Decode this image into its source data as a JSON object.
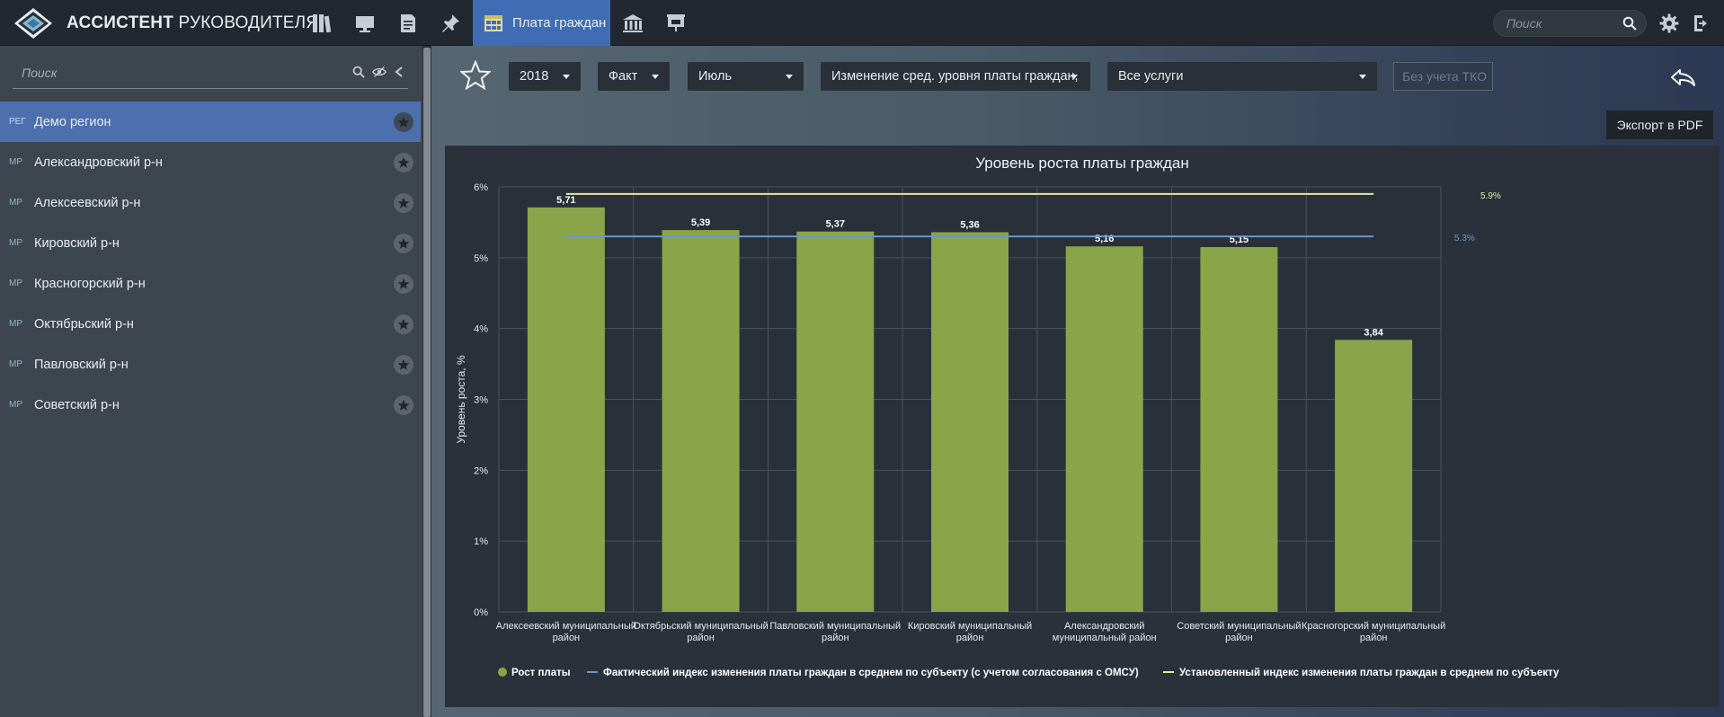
{
  "app": {
    "title_bold": "АССИСТЕНТ",
    "title_light": "РУКОВОДИТЕЛЯ"
  },
  "topbar": {
    "icons": [
      "binders-icon",
      "monitor-icon",
      "checklist-icon",
      "pin-icon"
    ],
    "active_tab": {
      "label": "Плата граждан",
      "icon": "table-grid-icon"
    },
    "icons_after": [
      "bank-icon",
      "presentation-icon"
    ],
    "search_placeholder": "Поиск",
    "right_icons": [
      "gear-icon",
      "logout-icon"
    ]
  },
  "sidebar": {
    "search_placeholder": "Поиск",
    "items": [
      {
        "tag": "РЕГ",
        "label": "Демо регион",
        "active": true
      },
      {
        "tag": "МР",
        "label": "Александровский р-н"
      },
      {
        "tag": "МР",
        "label": "Алексеевский р-н"
      },
      {
        "tag": "МР",
        "label": "Кировский р-н"
      },
      {
        "tag": "МР",
        "label": "Красногорский р-н"
      },
      {
        "tag": "МР",
        "label": "Октябрьский р-н"
      },
      {
        "tag": "МР",
        "label": "Павловский р-н"
      },
      {
        "tag": "МР",
        "label": "Советский р-н"
      }
    ]
  },
  "filters": {
    "year": "2018",
    "mode": "Факт",
    "month": "Июль",
    "indicator": "Изменение сред. уровня платы граждан,",
    "services": "Все услуги",
    "tko_placeholder": "Без учета ТКО"
  },
  "export_label": "Экспорт в PDF",
  "colors": {
    "bar": "#8aa44a",
    "fact_line": "#6f95c8",
    "set_line": "#e7e89a",
    "accent": "#3f6db5"
  },
  "chart_data": {
    "type": "bar",
    "title": "Уровень роста платы граждан",
    "ylabel": "Уровень роста, %",
    "ylim": [
      0,
      6
    ],
    "yticks": [
      "0%",
      "1%",
      "2%",
      "3%",
      "4%",
      "5%",
      "6%"
    ],
    "categories": [
      [
        "Алексеевский муниципальный",
        "район"
      ],
      [
        "Октябрьский муниципальный",
        "район"
      ],
      [
        "Павловский муниципальный",
        "район"
      ],
      [
        "Кировский муниципальный",
        "район"
      ],
      [
        "Александровский",
        "муниципальный район"
      ],
      [
        "Советский муниципальный",
        "район"
      ],
      [
        "Красногорский муниципальный",
        "район"
      ]
    ],
    "series": [
      {
        "name": "Рост платы",
        "values": [
          5.71,
          5.39,
          5.37,
          5.36,
          5.16,
          5.15,
          3.84
        ],
        "labels": [
          "5,71",
          "5,39",
          "5,37",
          "5,36",
          "5,16",
          "5,15",
          "3,84"
        ]
      }
    ],
    "reference_lines": [
      {
        "name": "Фактический индекс изменения платы граждан в среднем по субъекту (с учетом согласования с ОМСУ)",
        "value": 5.3,
        "label": "5.3%"
      },
      {
        "name": "Установленный индекс изменения платы граждан в среднем по субъекту",
        "value": 5.9,
        "label": "5.9%"
      }
    ],
    "grid": true,
    "legend_position": "bottom"
  }
}
